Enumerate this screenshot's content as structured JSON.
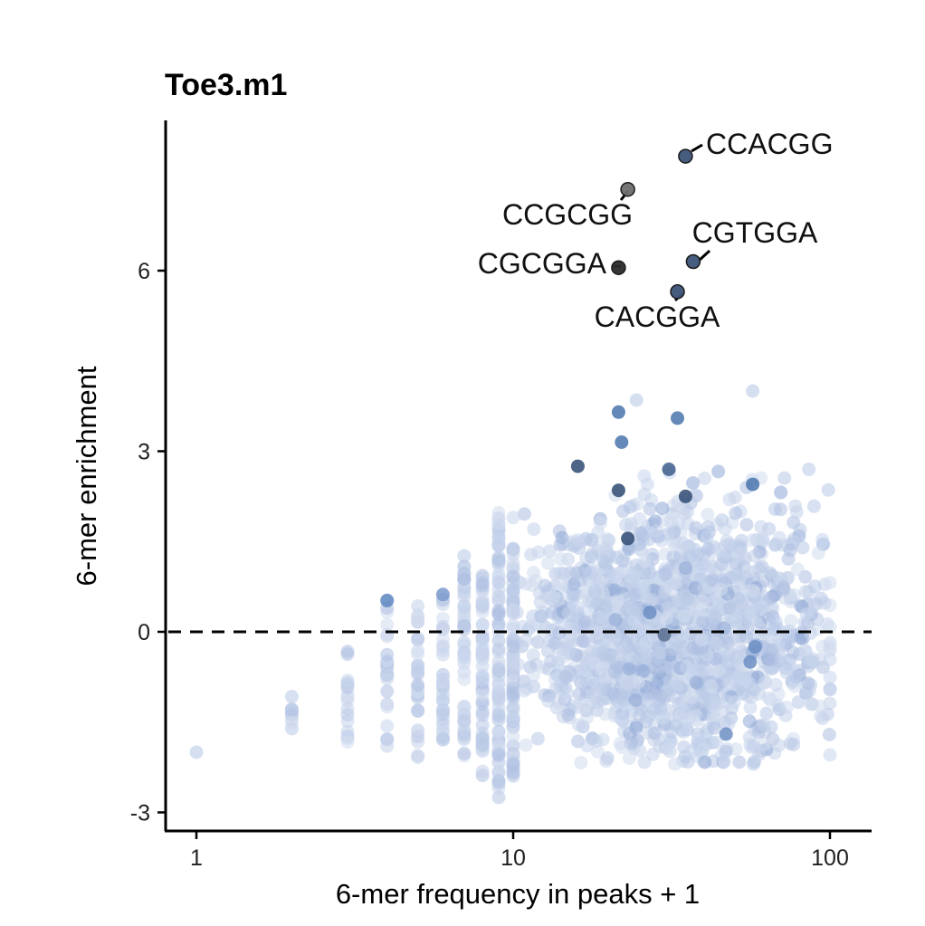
{
  "chart_data": {
    "type": "scatter",
    "title": "Toe3.m1",
    "xlabel": "6-mer frequency in peaks + 1",
    "ylabel": "6-mer enrichment",
    "x_scale": "log10",
    "xlim": [
      0.9,
      120
    ],
    "ylim": [
      -3.3,
      8.3
    ],
    "x_ticks": [
      {
        "value": 1,
        "label": "1"
      },
      {
        "value": 10,
        "label": "10"
      },
      {
        "value": 100,
        "label": "100"
      }
    ],
    "y_ticks": [
      {
        "value": -3,
        "label": "-3"
      },
      {
        "value": 0,
        "label": "0"
      },
      {
        "value": 3,
        "label": "3"
      },
      {
        "value": 6,
        "label": "6"
      }
    ],
    "reference_line": {
      "y": 0,
      "style": "dashed",
      "color": "#000000"
    },
    "grid": false,
    "legend": "none",
    "colors": {
      "background_points": "#c5d2ea",
      "mid_points": "#5b86c0",
      "dark_points": "#2a4870"
    },
    "labeled_points": [
      {
        "label": "CCACGG",
        "x": 35,
        "y": 7.9,
        "color": "#3d5478"
      },
      {
        "label": "CCGCGG",
        "x": 23,
        "y": 7.35,
        "color": "#6e6e6e"
      },
      {
        "label": "CGTGGA",
        "x": 37,
        "y": 6.15,
        "color": "#3d5478"
      },
      {
        "label": "CGCGGA",
        "x": 21.5,
        "y": 6.05,
        "color": "#2b2b2b"
      },
      {
        "label": "CACGGA",
        "x": 33,
        "y": 5.65,
        "color": "#3d5478"
      }
    ],
    "highlight_points": [
      {
        "x": 21.5,
        "y": 3.65,
        "color": "#4a74ad"
      },
      {
        "x": 33,
        "y": 3.55,
        "color": "#4a74ad"
      },
      {
        "x": 22,
        "y": 3.15,
        "color": "#4a74ad"
      },
      {
        "x": 16,
        "y": 2.75,
        "color": "#2f4a72"
      },
      {
        "x": 31,
        "y": 2.7,
        "color": "#3d5d8c"
      },
      {
        "x": 21.5,
        "y": 2.35,
        "color": "#2f4a72"
      },
      {
        "x": 57,
        "y": 2.45,
        "color": "#4a74ad"
      },
      {
        "x": 35,
        "y": 2.25,
        "color": "#2f4a72"
      },
      {
        "x": 23,
        "y": 1.55,
        "color": "#2f4a72"
      },
      {
        "x": 4,
        "y": 0.52,
        "color": "#5b86c0"
      },
      {
        "x": 6,
        "y": 0.62,
        "color": "#7a9acb"
      },
      {
        "x": 30,
        "y": -0.05,
        "color": "#5b6f90"
      },
      {
        "x": 27,
        "y": 0.32,
        "color": "#6d8fc4"
      },
      {
        "x": 58,
        "y": -0.25,
        "color": "#6d8fc4"
      },
      {
        "x": 47,
        "y": -1.7,
        "color": "#6d8fc4"
      },
      {
        "x": 56,
        "y": -0.5,
        "color": "#6d8fc4"
      }
    ],
    "outlier_points": [
      {
        "x": 1,
        "y": -2.0
      },
      {
        "x": 24.5,
        "y": 3.85
      },
      {
        "x": 57,
        "y": 4.0
      },
      {
        "x": 9,
        "y": -2.75
      }
    ],
    "background_cloud": {
      "point_count": 1700,
      "description_note": "",
      "columns": [
        {
          "x": 2,
          "ymin": -1.8,
          "ymax": -1.0
        },
        {
          "x": 3,
          "ymin": -2.0,
          "ymax": -0.2
        },
        {
          "x": 4,
          "ymin": -2.1,
          "ymax": 0.4
        },
        {
          "x": 5,
          "ymin": -2.1,
          "ymax": 0.5
        },
        {
          "x": 6,
          "ymin": -1.9,
          "ymax": 0.6
        },
        {
          "x": 7,
          "ymin": -2.2,
          "ymax": 1.3
        },
        {
          "x": 8,
          "ymin": -2.4,
          "ymax": 1.0
        },
        {
          "x": 9,
          "ymin": -2.6,
          "ymax": 2.0
        },
        {
          "x": 10,
          "ymin": -2.4,
          "ymax": 1.4
        }
      ]
    }
  }
}
